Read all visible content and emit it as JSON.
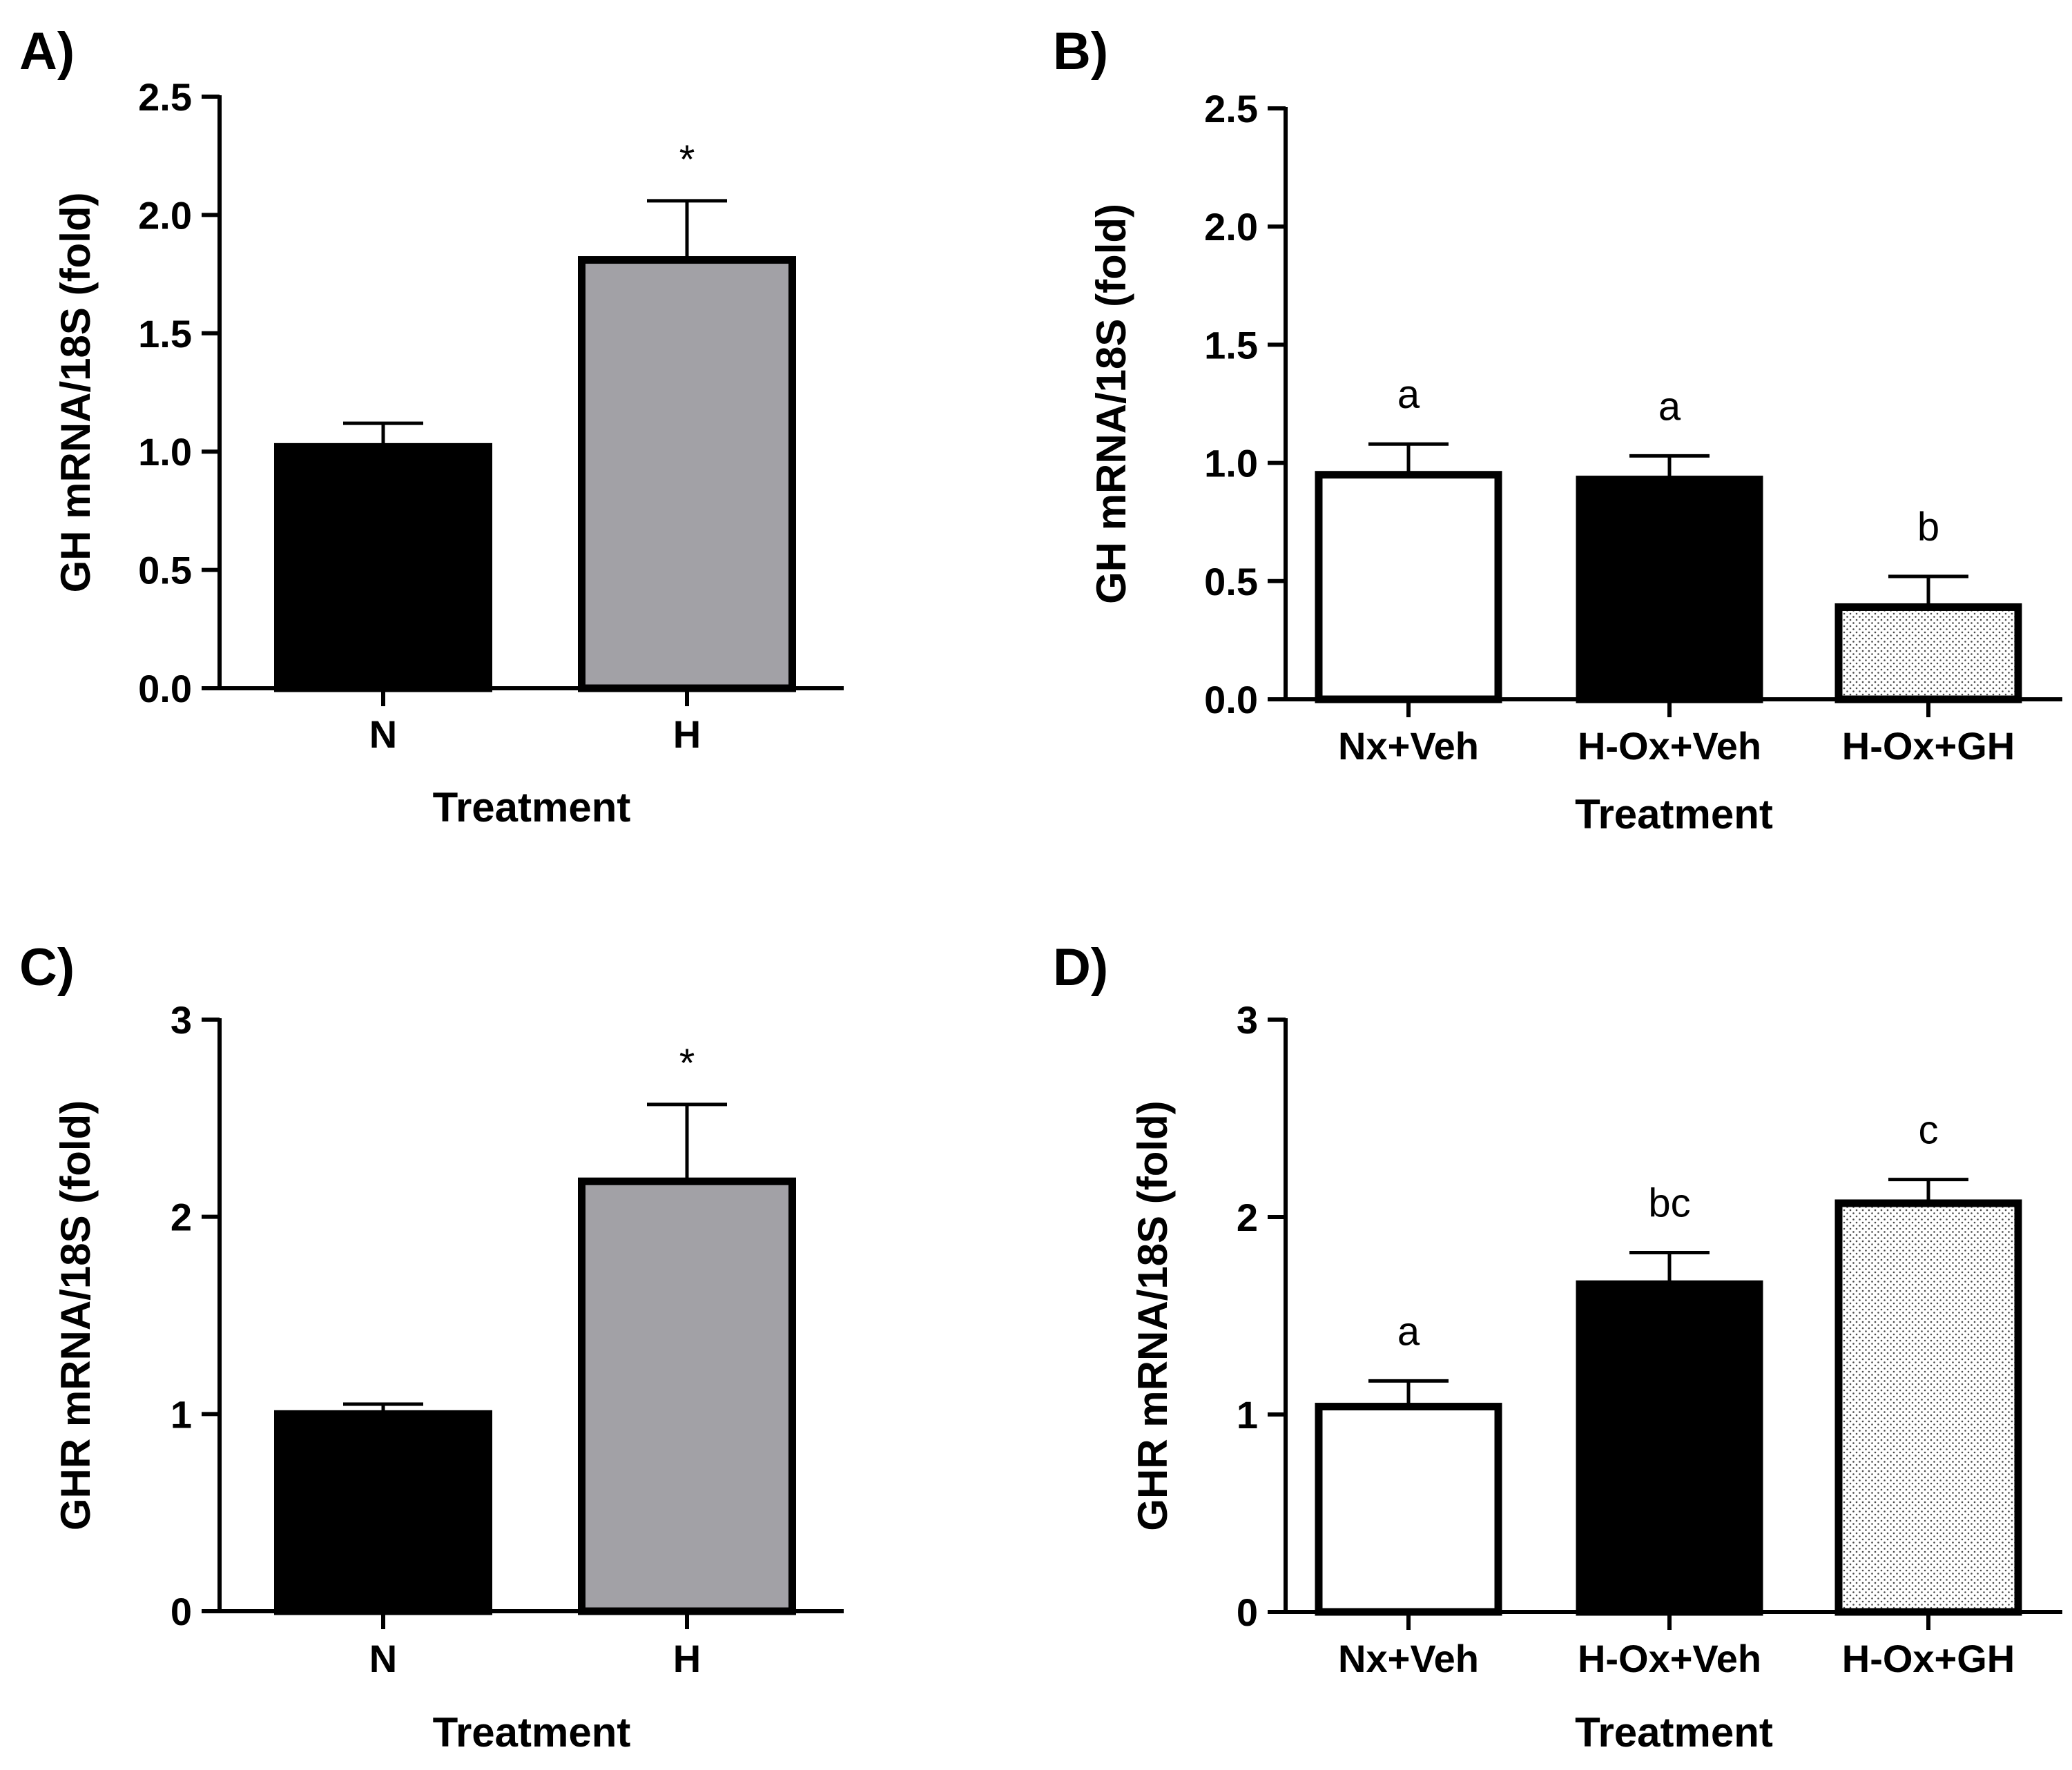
{
  "chart_data": [
    {
      "panel": "A)",
      "type": "bar",
      "categories": [
        "N",
        "H"
      ],
      "values": [
        1.02,
        1.81
      ],
      "errors": [
        0.1,
        0.25
      ],
      "annotations": [
        "",
        "*"
      ],
      "fills": [
        "#000000",
        "#a2a1a6"
      ],
      "patterns": [
        "solid",
        "solid"
      ],
      "xlabel": "Treatment",
      "ylabel": "GH mRNA/18S (fold)",
      "ylim": [
        0,
        2.5
      ],
      "yticks": [
        0,
        0.5,
        1.0,
        1.5,
        2.0,
        2.5
      ],
      "ytick_labels": [
        "0.0",
        "0.5",
        "1.0",
        "1.5",
        "2.0",
        "2.5"
      ]
    },
    {
      "panel": "B)",
      "type": "bar",
      "categories": [
        "Nx+Veh",
        "H-Ox+Veh",
        "H-Ox+GH"
      ],
      "values": [
        0.95,
        0.93,
        0.39
      ],
      "errors": [
        0.13,
        0.1,
        0.13
      ],
      "annotations": [
        "a",
        "a",
        "b"
      ],
      "fills": [
        "#ffffff",
        "#000000",
        "#ffffff"
      ],
      "patterns": [
        "solid",
        "solid",
        "dots"
      ],
      "xlabel": "Treatment",
      "ylabel": "GH mRNA/18S (fold)",
      "ylim": [
        0,
        2.5
      ],
      "yticks": [
        0,
        0.5,
        1.0,
        1.5,
        2.0,
        2.5
      ],
      "ytick_labels": [
        "0.0",
        "0.5",
        "1.0",
        "1.5",
        "2.0",
        "2.5"
      ]
    },
    {
      "panel": "C)",
      "type": "bar",
      "categories": [
        "N",
        "H"
      ],
      "values": [
        1.0,
        2.18
      ],
      "errors": [
        0.05,
        0.39
      ],
      "annotations": [
        "",
        "*"
      ],
      "fills": [
        "#000000",
        "#a2a1a6"
      ],
      "patterns": [
        "solid",
        "solid"
      ],
      "xlabel": "Treatment",
      "ylabel": "GHR mRNA/18S (fold)",
      "ylim": [
        0,
        3
      ],
      "yticks": [
        0,
        1,
        2,
        3
      ],
      "ytick_labels": [
        "0",
        "1",
        "2",
        "3"
      ]
    },
    {
      "panel": "D)",
      "type": "bar",
      "categories": [
        "Nx+Veh",
        "H-Ox+Veh",
        "H-Ox+GH"
      ],
      "values": [
        1.04,
        1.66,
        2.07
      ],
      "errors": [
        0.13,
        0.16,
        0.12
      ],
      "annotations": [
        "a",
        "bc",
        "c"
      ],
      "fills": [
        "#ffffff",
        "#000000",
        "#ffffff"
      ],
      "patterns": [
        "solid",
        "solid",
        "dots"
      ],
      "xlabel": "Treatment",
      "ylabel": "GHR mRNA/18S (fold)",
      "ylim": [
        0,
        3
      ],
      "yticks": [
        0,
        1,
        2,
        3
      ],
      "ytick_labels": [
        "0",
        "1",
        "2",
        "3"
      ]
    }
  ]
}
